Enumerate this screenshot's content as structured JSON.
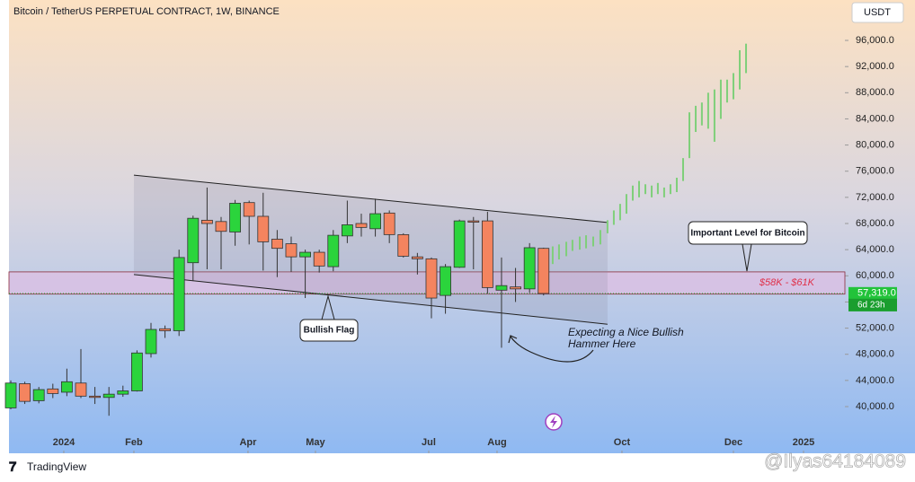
{
  "chart_data": {
    "type": "candlestick",
    "title": "Bitcoin / TetherUS PERPETUAL CONTRACT, 1W, BINANCE",
    "currency": "USDT",
    "brand": "TradingView",
    "watermark": "@Ilyas64184089",
    "categories": [
      null,
      null,
      null,
      null,
      null,
      null,
      null,
      null,
      null,
      null,
      null,
      null,
      null,
      null,
      null,
      null,
      null,
      null,
      null,
      null,
      null,
      null,
      null,
      null,
      null,
      null,
      null,
      null,
      null,
      null,
      null,
      null,
      null,
      null,
      null,
      null,
      null,
      null,
      null
    ],
    "open": [
      39800,
      43500,
      40900,
      42700,
      42200,
      43600,
      41600,
      41400,
      41900,
      42400,
      48100,
      51900,
      51600,
      62000,
      68500,
      68300,
      66700,
      71200,
      69100,
      65600,
      64900,
      62900,
      63600,
      61400,
      66100,
      68000,
      67200,
      69600,
      66300,
      62900,
      62600,
      57000,
      61300,
      68400,
      68400,
      57800,
      58300,
      58000,
      64200
    ],
    "high": [
      44000,
      43800,
      43000,
      43500,
      45800,
      48800,
      43000,
      43000,
      43200,
      48600,
      52800,
      52400,
      64000,
      69200,
      73500,
      69000,
      71600,
      71500,
      72700,
      67000,
      66000,
      64000,
      64000,
      67000,
      71500,
      69500,
      71800,
      70000,
      66500,
      63500,
      62800,
      61800,
      68600,
      69000,
      69800,
      62800,
      61200,
      65000,
      64300
    ],
    "low": [
      39600,
      40400,
      40500,
      41300,
      41600,
      41300,
      40400,
      38600,
      41500,
      42300,
      47500,
      50500,
      50800,
      59200,
      61000,
      61000,
      64600,
      64800,
      60800,
      59800,
      60600,
      56600,
      60500,
      60700,
      65000,
      66000,
      66000,
      65000,
      62800,
      60200,
      53500,
      54200,
      61200,
      61000,
      57300,
      49000,
      56000,
      57400,
      57000
    ],
    "close": [
      43600,
      40800,
      42600,
      42000,
      43800,
      41600,
      41400,
      41900,
      42400,
      48200,
      51800,
      51600,
      62800,
      68800,
      68000,
      66800,
      71100,
      69100,
      65200,
      64200,
      62900,
      63600,
      61500,
      66200,
      67800,
      67400,
      69500,
      66300,
      63000,
      62600,
      56600,
      61400,
      68400,
      68200,
      58200,
      58500,
      58000,
      64300,
      57300
    ],
    "up_color": "#2bd43c",
    "down_color": "#f4845f",
    "projection": {
      "color": "#7fcf7a",
      "x": [
        38.65,
        39.1,
        39.62,
        40.06,
        40.58,
        41.03,
        41.54,
        42.05,
        42.56,
        43.01,
        43.46,
        43.91,
        44.36,
        44.81,
        45.26,
        45.71,
        46.15,
        46.6,
        47.05,
        47.5,
        47.95,
        48.4,
        48.85,
        49.29,
        49.74,
        50.19,
        50.64,
        51.09,
        51.54,
        51.99,
        52.44
      ],
      "low": [
        61800,
        62500,
        63000,
        63800,
        64000,
        64200,
        64500,
        64800,
        66500,
        67800,
        68500,
        69500,
        71500,
        72000,
        72500,
        72000,
        72500,
        72000,
        72500,
        72800,
        74500,
        78000,
        82000,
        83000,
        82500,
        80500,
        84000,
        86500,
        87000,
        88500,
        91000
      ],
      "high": [
        64500,
        64800,
        65200,
        65500,
        66000,
        66200,
        66000,
        67000,
        68500,
        70000,
        71000,
        72500,
        73800,
        74500,
        74000,
        73800,
        74200,
        73500,
        74000,
        75000,
        78000,
        85000,
        86000,
        86500,
        88000,
        88500,
        90000,
        90000,
        91000,
        94500,
        95500
      ]
    },
    "channel": {
      "x": [
        8.78,
        42.56
      ],
      "upper": [
        75400,
        68150
      ],
      "lower": [
        60200,
        52600
      ]
    },
    "zone": {
      "low": 57200,
      "high": 60600,
      "label": "$58K - $61K"
    },
    "last_price": {
      "value": 57319,
      "label": "57,319.0"
    },
    "countdown": "6d 23h",
    "annotations": {
      "level": "Important Level for Bitcoin",
      "flag": "Bullish Flag",
      "hammer": [
        "Expecting a Nice Bullish",
        "Hammer Here"
      ]
    },
    "xlim": [
      -0.128,
      59.49
    ],
    "xticks": [
      {
        "value": 3.78,
        "label": "2024"
      },
      {
        "value": 8.78,
        "label": "Feb"
      },
      {
        "value": 16.92,
        "label": "Apr"
      },
      {
        "value": 21.73,
        "label": "May"
      },
      {
        "value": 29.81,
        "label": "Jul"
      },
      {
        "value": 34.68,
        "label": "Aug"
      },
      {
        "value": 43.59,
        "label": "Oct"
      },
      {
        "value": 51.54,
        "label": "Dec"
      },
      {
        "value": 56.54,
        "label": "2025"
      }
    ],
    "ylim": [
      32860,
      102180
    ],
    "yticks": [
      {
        "value": 40000,
        "label": "40,000.0"
      },
      {
        "value": 44000,
        "label": "44,000.0"
      },
      {
        "value": 48000,
        "label": "48,000.0"
      },
      {
        "value": 52000,
        "label": "52,000.0"
      },
      {
        "value": 56000,
        "label": "56,000.0"
      },
      {
        "value": 60000,
        "label": "60,000.0"
      },
      {
        "value": 64000,
        "label": "64,000.0"
      },
      {
        "value": 68000,
        "label": "68,000.0"
      },
      {
        "value": 72000,
        "label": "72,000.0"
      },
      {
        "value": 76000,
        "label": "76,000.0"
      },
      {
        "value": 80000,
        "label": "80,000.0"
      },
      {
        "value": 84000,
        "label": "84,000.0"
      },
      {
        "value": 88000,
        "label": "88,000.0"
      },
      {
        "value": 92000,
        "label": "92,000.0"
      },
      {
        "value": 96000,
        "label": "96,000.0"
      }
    ]
  }
}
